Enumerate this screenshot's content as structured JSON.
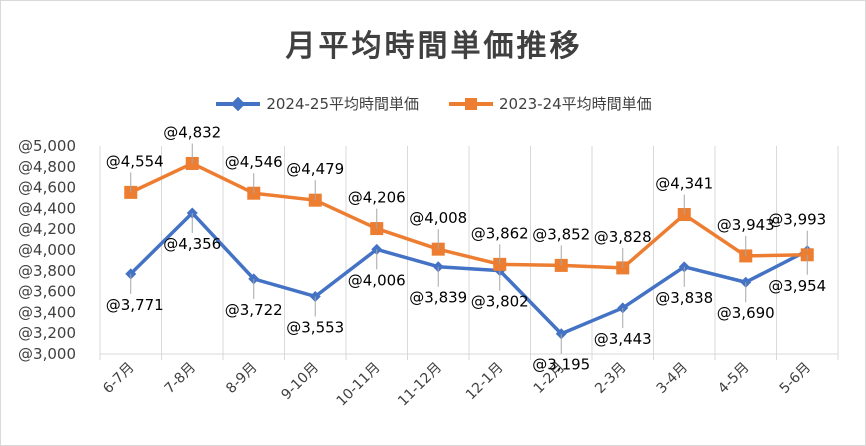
{
  "chart_data": {
    "type": "line",
    "title": "月平均時間単価推移",
    "categories": [
      "6-7月",
      "7-8月",
      "8-9月",
      "9-10月",
      "10-11月",
      "11-12月",
      "12-1月",
      "1-2月",
      "2-3月",
      "3-4月",
      "4-5月",
      "5-6月"
    ],
    "series": [
      {
        "name": "2024-25平均時間単価",
        "values": [
          3771,
          4356,
          3722,
          3553,
          4006,
          3839,
          3802,
          3195,
          3443,
          3838,
          3690,
          3993
        ],
        "color": "#4472c4",
        "marker": "diamond"
      },
      {
        "name": "2023-24平均時間単価",
        "values": [
          4554,
          4832,
          4546,
          4479,
          4206,
          4008,
          3862,
          3852,
          3828,
          4341,
          3943,
          3954
        ],
        "color": "#ed7d31",
        "marker": "square"
      }
    ],
    "ylim": [
      3000,
      5000
    ],
    "yticks": [
      3000,
      3200,
      3400,
      3600,
      3800,
      4000,
      4200,
      4400,
      4600,
      4800,
      5000
    ],
    "ytick_prefix": "@",
    "label_prefix": "@",
    "xlabel": "",
    "ylabel": "",
    "grid": "vertical",
    "legend_position": "top"
  }
}
